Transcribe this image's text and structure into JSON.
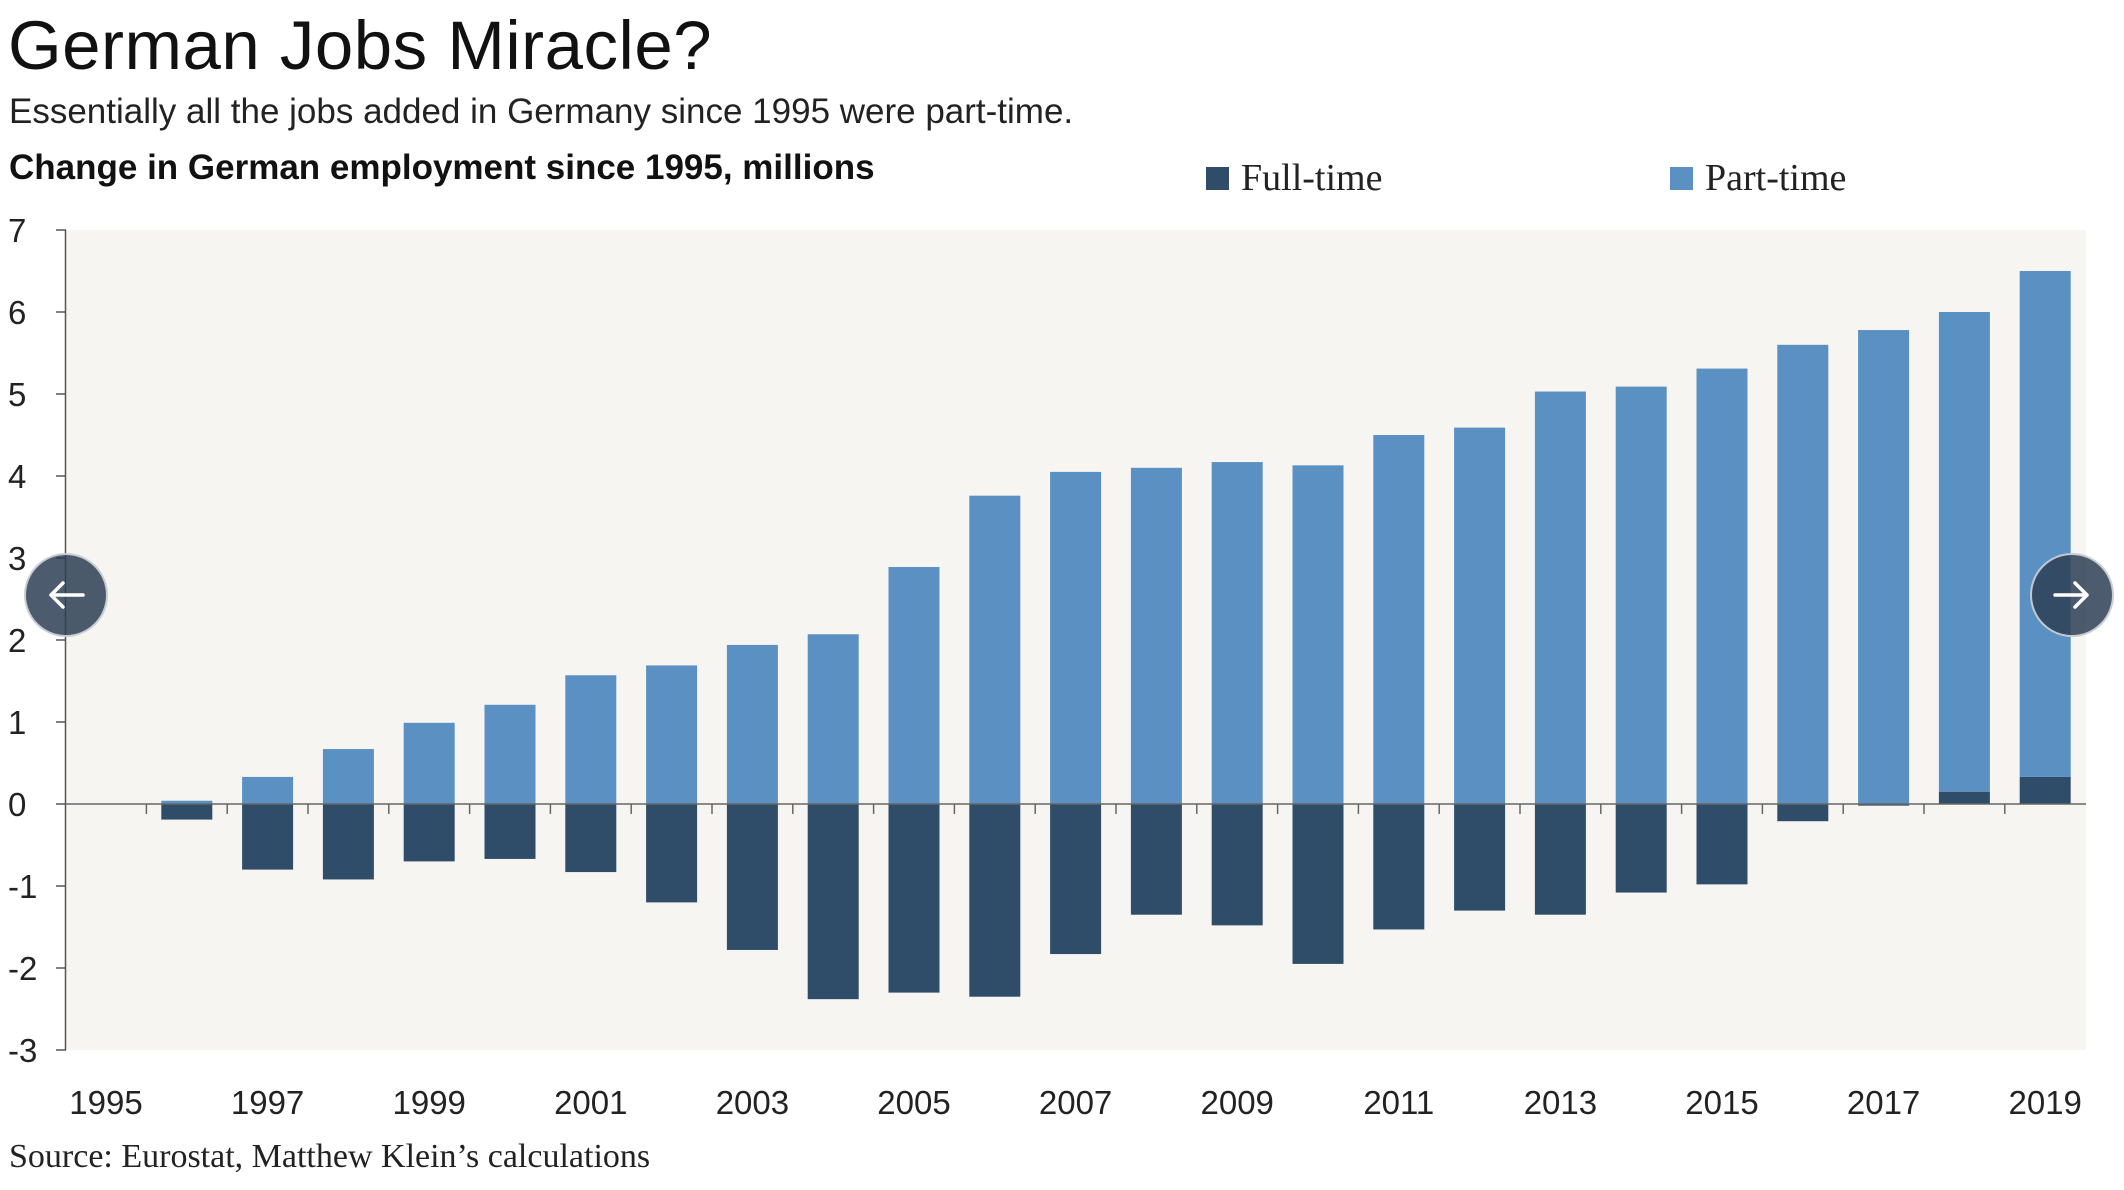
{
  "header": {
    "title": "German Jobs Miracle?",
    "subtitle": "Essentially all the jobs added in Germany since 1995 were part-time.",
    "chart_heading": "Change in German employment since 1995, millions"
  },
  "footer": {
    "source": "Source: Eurostat, Matthew Klein’s calculations"
  },
  "navigation": {
    "prev_icon": "arrow-left-icon",
    "next_icon": "arrow-right-icon"
  },
  "colors": {
    "full_time": "#2f4d69",
    "part_time": "#5a91c2",
    "plot_background": "#f6f5f2",
    "axis": "#555555",
    "nav_button": "#2d3e54"
  },
  "chart_data": {
    "type": "bar",
    "stacked": true,
    "title": "Change in German employment since 1995, millions",
    "xlabel": "",
    "ylabel": "",
    "ylim": [
      -3,
      7
    ],
    "yticks": [
      7,
      6,
      5,
      4,
      3,
      2,
      1,
      0,
      -1,
      -2,
      -3
    ],
    "grid": false,
    "legend": {
      "placement": "top",
      "entries": [
        "Full-time",
        "Part-time"
      ]
    },
    "categories": [
      "1995",
      "1996",
      "1997",
      "1998",
      "1999",
      "2000",
      "2001",
      "2002",
      "2003",
      "2004",
      "2005",
      "2006",
      "2007",
      "2008",
      "2009",
      "2010",
      "2011",
      "2012",
      "2013",
      "2014",
      "2015",
      "2016",
      "2017",
      "2018",
      "2019"
    ],
    "x_tick_labels": [
      "1995",
      "1997",
      "1999",
      "2001",
      "2003",
      "2005",
      "2007",
      "2009",
      "2011",
      "2013",
      "2015",
      "2017",
      "2019"
    ],
    "series": [
      {
        "name": "Full-time",
        "color": "#2f4d69",
        "values": [
          0,
          -0.19,
          -0.8,
          -0.92,
          -0.7,
          -0.67,
          -0.83,
          -1.2,
          -1.78,
          -2.38,
          -2.3,
          -2.35,
          -1.83,
          -1.35,
          -1.48,
          -1.95,
          -1.53,
          -1.3,
          -1.35,
          -1.08,
          -0.98,
          -0.21,
          -0.02,
          0.15,
          0.33
        ]
      },
      {
        "name": "Part-time",
        "color": "#5a91c2",
        "values": [
          0,
          0.04,
          0.33,
          0.67,
          0.99,
          1.21,
          1.57,
          1.69,
          1.94,
          2.07,
          2.89,
          3.76,
          4.05,
          4.1,
          4.17,
          4.13,
          4.5,
          4.59,
          5.03,
          5.09,
          5.31,
          5.6,
          5.78,
          5.85,
          6.17
        ]
      }
    ]
  }
}
